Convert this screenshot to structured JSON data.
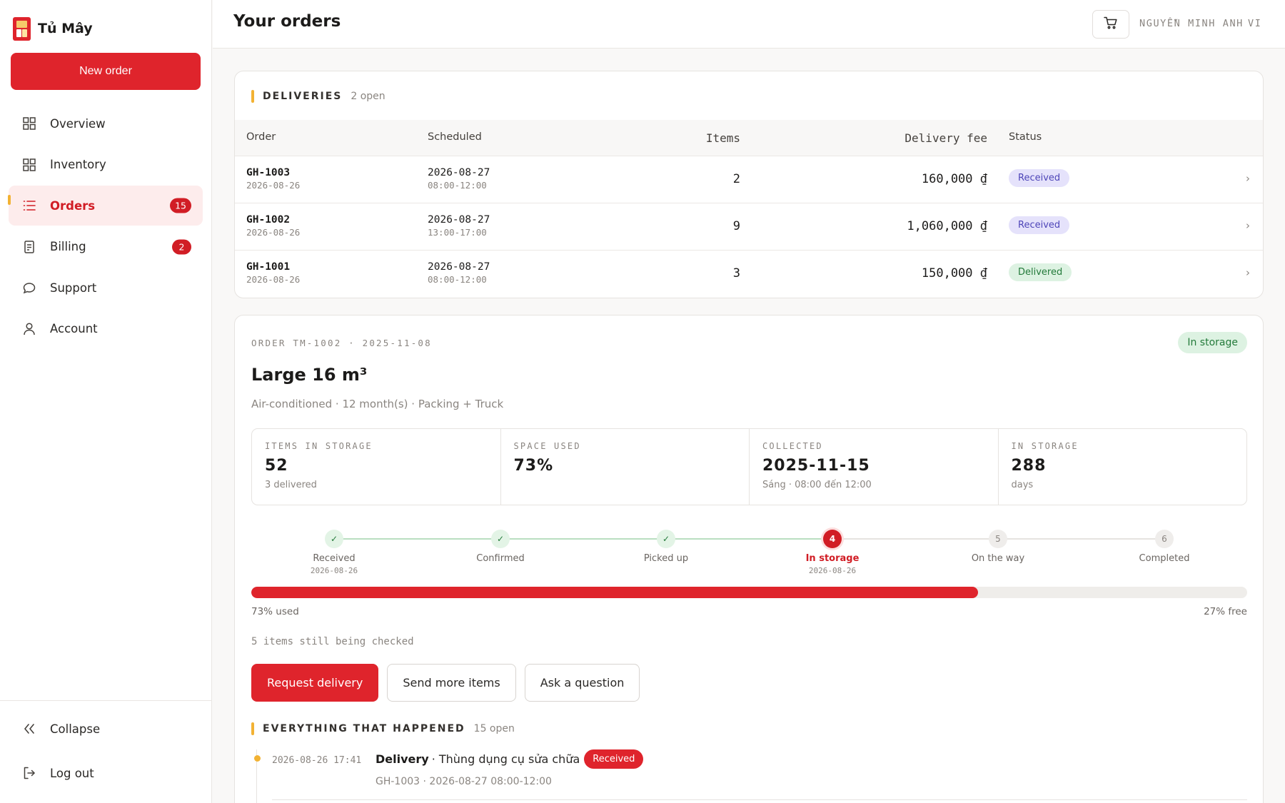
{
  "brand": {
    "name": "Tủ Mây",
    "accent": "#df242c"
  },
  "sidebar": {
    "new_order_label": "New order",
    "items": [
      {
        "label": "Overview",
        "icon": "grid-icon",
        "badge": null
      },
      {
        "label": "Inventory",
        "icon": "grid-icon",
        "badge": null
      },
      {
        "label": "Orders",
        "icon": "list-icon",
        "badge": "15",
        "active": true
      },
      {
        "label": "Billing",
        "icon": "receipt-icon",
        "badge": "2"
      },
      {
        "label": "Support",
        "icon": "chat-icon",
        "badge": null
      },
      {
        "label": "Account",
        "icon": "user-icon",
        "badge": null
      }
    ],
    "collapse_label": "Collapse",
    "logout_label": "Log out"
  },
  "header": {
    "title": "Your orders",
    "user_name": "NGUYỄN MINH ANH",
    "language": "VI"
  },
  "deliveries": {
    "title": "DELIVERIES",
    "count": "2 open",
    "columns": [
      "Order",
      "Scheduled",
      "Items",
      "Delivery fee",
      "Status"
    ],
    "rows": [
      {
        "order": "GH-1003",
        "order_date": "2026-08-26",
        "sched_date": "2026-08-27",
        "sched_time": "08:00-12:00",
        "items": "2",
        "fee": "160,000 ₫",
        "status": "Received",
        "status_type": "received"
      },
      {
        "order": "GH-1002",
        "order_date": "2026-08-26",
        "sched_date": "2026-08-27",
        "sched_time": "13:00-17:00",
        "items": "9",
        "fee": "1,060,000 ₫",
        "status": "Received",
        "status_type": "received"
      },
      {
        "order": "GH-1001",
        "order_date": "2026-08-26",
        "sched_date": "2026-08-27",
        "sched_time": "08:00-12:00",
        "items": "3",
        "fee": "150,000 ₫",
        "status": "Delivered",
        "status_type": "delivered"
      }
    ]
  },
  "order": {
    "meta": "ORDER TM-1002 · 2025-11-08",
    "title": "Large 16 m³",
    "description": "Air-conditioned · 12 month(s) · Packing + Truck",
    "status": "In storage",
    "stats": [
      {
        "label": "ITEMS IN STORAGE",
        "value": "52",
        "note": "3 delivered"
      },
      {
        "label": "SPACE USED",
        "value": "73%",
        "note": ""
      },
      {
        "label": "COLLECTED",
        "value": "2025-11-15",
        "note": "Sáng · 08:00 đến 12:00"
      },
      {
        "label": "IN STORAGE",
        "value": "288",
        "note": "days"
      }
    ],
    "steps": [
      {
        "label": "Received",
        "state": "done",
        "date": "2026-08-26",
        "num": "1"
      },
      {
        "label": "Confirmed",
        "state": "done",
        "date": "",
        "num": "2"
      },
      {
        "label": "Picked up",
        "state": "done",
        "date": "",
        "num": "3"
      },
      {
        "label": "In storage",
        "state": "current",
        "date": "2026-08-26",
        "num": "4"
      },
      {
        "label": "On the way",
        "state": "todo",
        "date": "",
        "num": "5"
      },
      {
        "label": "Completed",
        "state": "todo",
        "date": "",
        "num": "6"
      }
    ],
    "space_used_fraction": 0.73,
    "used_label": "73% used",
    "free_label": "27% free",
    "checking_note": "5 items still being checked",
    "actions": {
      "request_delivery": "Request delivery",
      "send_more": "Send more items",
      "ask_question": "Ask a question"
    }
  },
  "timeline": {
    "title": "EVERYTHING THAT HAPPENED",
    "count": "15 open",
    "events": [
      {
        "time": "2026-08-26 17:41",
        "type": "Delivery",
        "detail": "· Thùng dụng cụ sửa chữa",
        "badge": "Received",
        "sub": "GH-1003 · 2026-08-27 08:00-12:00"
      }
    ]
  }
}
